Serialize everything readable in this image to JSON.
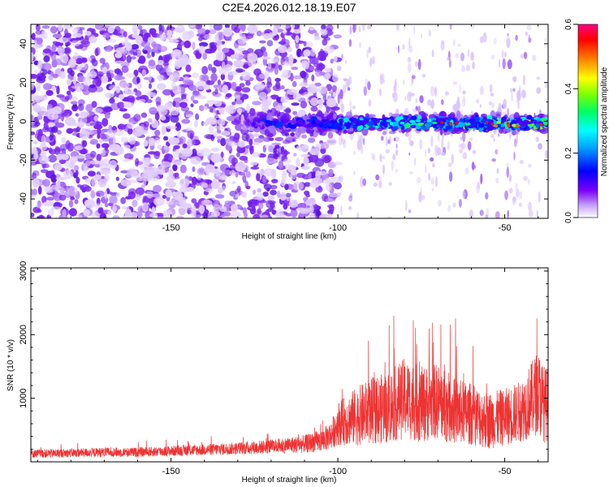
{
  "page_title": "C2E4.2026.012.18.19.E07",
  "chart_data": [
    {
      "type": "heatmap",
      "title": "C2E4.2026.012.18.19.E07",
      "xlabel": "Height of straight line (km)",
      "ylabel": "Frequency (Hz)",
      "xlim": [
        -192,
        -37
      ],
      "ylim": [
        -50,
        50
      ],
      "xticks": [
        -150,
        -100,
        -50
      ],
      "xtick_labels": [
        "-150",
        "-100",
        "-50"
      ],
      "yticks": [
        -40,
        -20,
        0,
        20,
        40
      ],
      "ytick_labels": [
        "-40",
        "-20",
        "0",
        "20",
        "40"
      ],
      "colorbar": {
        "label": "Normalized spectral amplitude",
        "range": [
          0,
          0.6
        ],
        "ticks": [
          0,
          0.2,
          0.4,
          0.6
        ],
        "tick_labels": [
          "0.0",
          "0.2",
          "0.4",
          "0.6"
        ],
        "colors": [
          "#ffffff",
          "#7a00ff",
          "#0000ff",
          "#00a0ff",
          "#00ffff",
          "#00ff60",
          "#80ff00",
          "#ffff00",
          "#ff8000",
          "#ff0000",
          "#ff0080"
        ]
      },
      "noise_color": "#7a22f0",
      "regions": [
        {
          "name": "dense-noise",
          "x_range": [
            -192,
            -100
          ],
          "freq_range": [
            -50,
            50
          ],
          "amplitude": 0.08
        },
        {
          "name": "sparse-noise",
          "x_range": [
            -100,
            -37
          ],
          "freq_range": [
            -50,
            50
          ],
          "amplitude": 0.04
        },
        {
          "name": "signal-band",
          "x_range": [
            -128,
            -37
          ],
          "freq_center": -1,
          "half_width_hz": 6,
          "amplitude_range": [
            0.1,
            0.45
          ]
        }
      ],
      "grid": false
    },
    {
      "type": "line",
      "xlabel": "Height of straight line (km)",
      "ylabel": "SNR (10 * v/v)",
      "xlim": [
        -192,
        -37
      ],
      "ylim": [
        0,
        3050
      ],
      "xticks": [
        -150,
        -100,
        -50
      ],
      "xtick_labels": [
        "-150",
        "-100",
        "-50"
      ],
      "yticks": [
        1000,
        2000,
        3000
      ],
      "ytick_labels": [
        "1000",
        "2000",
        "3000"
      ],
      "color": "#ee3333",
      "x": [
        -190,
        -180,
        -170,
        -160,
        -150,
        -140,
        -130,
        -120,
        -115,
        -110,
        -105,
        -102,
        -100,
        -95,
        -90,
        -85,
        -80,
        -75,
        -70,
        -65,
        -60,
        -55,
        -50,
        -45,
        -40,
        -38
      ],
      "values": [
        130,
        140,
        150,
        150,
        170,
        190,
        210,
        240,
        260,
        280,
        330,
        420,
        600,
        700,
        800,
        850,
        1000,
        900,
        950,
        800,
        750,
        650,
        700,
        800,
        1100,
        900
      ],
      "spread": [
        90,
        90,
        100,
        100,
        110,
        120,
        130,
        150,
        170,
        190,
        230,
        300,
        450,
        600,
        700,
        750,
        850,
        800,
        800,
        700,
        650,
        600,
        600,
        650,
        900,
        800
      ],
      "grid": false
    }
  ]
}
